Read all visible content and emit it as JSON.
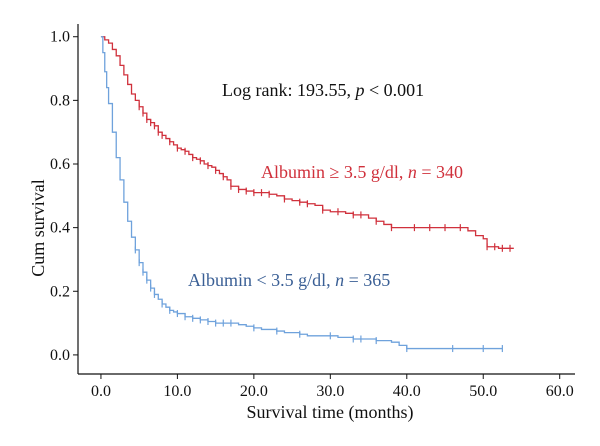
{
  "chart_data": {
    "type": "line",
    "subtype": "kaplan-meier",
    "xlabel": "Survival time (months)",
    "ylabel": "Cum survival",
    "xlim": [
      -3,
      62
    ],
    "ylim": [
      -0.06,
      1.04
    ],
    "xticks": [
      "0.0",
      "10.0",
      "20.0",
      "30.0",
      "40.0",
      "50.0",
      "60.0"
    ],
    "yticks": [
      "0.0",
      "0.2",
      "0.4",
      "0.6",
      "0.8",
      "1.0"
    ],
    "grid": false,
    "annotation": {
      "prefix": "Log rank: 193.55, ",
      "italic": "p",
      "suffix": " < 0.001"
    },
    "series": [
      {
        "label_prefix": "Albumin ≥ 3.5 g/dl, ",
        "label_italic": "n",
        "label_suffix": " = 340",
        "color": "#d0313c",
        "x": [
          0,
          0.5,
          1,
          1.5,
          2,
          2.5,
          3,
          3.5,
          4,
          4.5,
          5,
          5.5,
          6,
          6.5,
          7,
          7.5,
          8,
          8.5,
          9,
          9.5,
          10,
          10.5,
          11,
          11.5,
          12,
          12.5,
          13,
          13.5,
          14,
          14.5,
          15,
          15.5,
          16,
          16.5,
          17,
          18,
          19,
          20,
          21,
          22,
          23,
          24,
          25,
          26,
          27,
          28,
          29,
          30,
          31,
          32,
          33,
          34,
          35,
          36,
          37,
          38,
          40,
          42,
          44,
          46,
          48,
          49,
          50,
          50.5,
          52,
          54
        ],
        "y": [
          1.0,
          0.99,
          0.98,
          0.96,
          0.94,
          0.91,
          0.88,
          0.85,
          0.82,
          0.8,
          0.78,
          0.76,
          0.74,
          0.73,
          0.72,
          0.7,
          0.69,
          0.68,
          0.67,
          0.66,
          0.65,
          0.645,
          0.64,
          0.63,
          0.62,
          0.615,
          0.61,
          0.6,
          0.595,
          0.59,
          0.58,
          0.57,
          0.56,
          0.55,
          0.53,
          0.52,
          0.515,
          0.51,
          0.51,
          0.505,
          0.5,
          0.49,
          0.485,
          0.48,
          0.475,
          0.47,
          0.455,
          0.45,
          0.45,
          0.445,
          0.44,
          0.44,
          0.43,
          0.42,
          0.41,
          0.4,
          0.4,
          0.4,
          0.4,
          0.4,
          0.39,
          0.375,
          0.365,
          0.34,
          0.335,
          0.335
        ],
        "censor_x": [
          5,
          5.5,
          6,
          6.5,
          7,
          7.5,
          8,
          9,
          10,
          11,
          12,
          13,
          14,
          15,
          16,
          17,
          18,
          19,
          20,
          21,
          22,
          24,
          26,
          27,
          29,
          31,
          33,
          34,
          36,
          38,
          41,
          43,
          45,
          47,
          50.5,
          51.5,
          52.5,
          53.5
        ]
      },
      {
        "label_prefix": "Albumin < 3.5 g/dl, ",
        "label_italic": "n",
        "label_suffix": " = 365",
        "color": "#6fa2dc",
        "x": [
          0,
          0.25,
          0.5,
          0.75,
          1,
          1.5,
          2,
          2.5,
          3,
          3.5,
          4,
          4.5,
          5,
          5.5,
          6,
          6.5,
          7,
          7.5,
          8,
          8.5,
          9,
          9.5,
          10,
          11,
          12,
          13,
          14,
          15,
          16,
          17,
          18,
          19,
          20,
          21,
          22,
          23,
          24,
          25,
          26,
          27,
          28,
          29,
          30,
          31,
          32,
          33,
          34,
          35,
          36,
          37,
          38,
          39,
          40,
          42,
          44,
          46,
          48,
          50,
          52.5
        ],
        "y": [
          1.0,
          0.95,
          0.89,
          0.84,
          0.79,
          0.7,
          0.62,
          0.55,
          0.48,
          0.42,
          0.37,
          0.33,
          0.29,
          0.26,
          0.235,
          0.21,
          0.19,
          0.175,
          0.16,
          0.15,
          0.14,
          0.135,
          0.13,
          0.12,
          0.115,
          0.11,
          0.105,
          0.1,
          0.1,
          0.1,
          0.095,
          0.09,
          0.085,
          0.08,
          0.08,
          0.075,
          0.07,
          0.07,
          0.065,
          0.06,
          0.06,
          0.06,
          0.06,
          0.055,
          0.055,
          0.05,
          0.05,
          0.05,
          0.045,
          0.045,
          0.04,
          0.03,
          0.02,
          0.02,
          0.02,
          0.02,
          0.02,
          0.02,
          0.02
        ],
        "censor_x": [
          4.5,
          5,
          5.5,
          6,
          6.5,
          7,
          8,
          9,
          10,
          11,
          12,
          13,
          14,
          15,
          16,
          17,
          20,
          23,
          26,
          30,
          33,
          34,
          36,
          40,
          46,
          50,
          52.5
        ]
      }
    ]
  }
}
